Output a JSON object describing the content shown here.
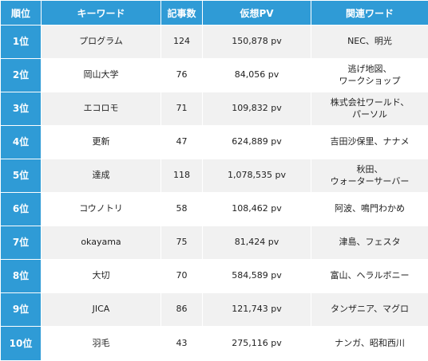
{
  "table": {
    "headers": [
      "順位",
      "キーワード",
      "記事数",
      "仮想PV",
      "関連ワード"
    ],
    "rows": [
      {
        "rank": "1位",
        "keyword": "プログラム",
        "articles": "124",
        "pv": "150,878 pv",
        "related": "NEC、明光"
      },
      {
        "rank": "2位",
        "keyword": "岡山大学",
        "articles": "76",
        "pv": "84,056 pv",
        "related": "逃げ地図、\nワークショップ"
      },
      {
        "rank": "3位",
        "keyword": "エコロモ",
        "articles": "71",
        "pv": "109,832 pv",
        "related": "株式会社ワールド、\nパーソル"
      },
      {
        "rank": "4位",
        "keyword": "更新",
        "articles": "47",
        "pv": "624,889 pv",
        "related": "吉田沙保里、ナナメ"
      },
      {
        "rank": "5位",
        "keyword": "達成",
        "articles": "118",
        "pv": "1,078,535 pv",
        "related": "秋田、\nウォーターサーバー"
      },
      {
        "rank": "6位",
        "keyword": "コウノトリ",
        "articles": "58",
        "pv": "108,462 pv",
        "related": "阿波、鳴門わかめ"
      },
      {
        "rank": "7位",
        "keyword": "okayama",
        "articles": "75",
        "pv": "81,424 pv",
        "related": "津島、フェスタ"
      },
      {
        "rank": "8位",
        "keyword": "大切",
        "articles": "70",
        "pv": "584,589 pv",
        "related": "富山、ヘラルボニー"
      },
      {
        "rank": "9位",
        "keyword": "JICA",
        "articles": "86",
        "pv": "121,743 pv",
        "related": "タンザニア、マグロ"
      },
      {
        "rank": "10位",
        "keyword": "羽毛",
        "articles": "43",
        "pv": "275,116 pv",
        "related": "ナンガ、昭和西川"
      }
    ]
  },
  "colors": {
    "header_bg": "#2f9bd6",
    "rank_bg": "#2f9bd6",
    "stripe_bg": "#f1f1f1"
  }
}
